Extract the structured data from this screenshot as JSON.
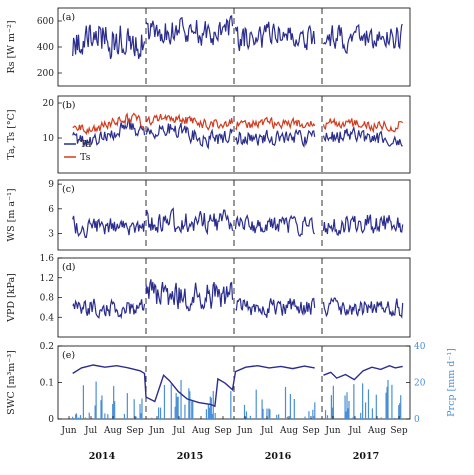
{
  "chart_data": [
    {
      "type": "line",
      "panel": "(a)",
      "ylabel": "Rs [W m⁻²]",
      "ylim": [
        100,
        700
      ],
      "yticks": [
        200,
        400,
        600
      ],
      "series": [
        {
          "color": "#2b2d8e",
          "segments": [
            {
              "start": 0.5,
              "end": 2.95,
              "base": 460,
              "amp": 200,
              "seed": 3
            },
            {
              "start": 3.0,
              "end": 5.95,
              "base": 520,
              "amp": 150,
              "seed": 7
            },
            {
              "start": 6.05,
              "end": 8.75,
              "base": 470,
              "amp": 150,
              "seed": 11
            },
            {
              "start": 9.05,
              "end": 11.75,
              "base": 470,
              "amp": 140,
              "seed": 17
            }
          ]
        }
      ]
    },
    {
      "type": "line",
      "panel": "(b)",
      "ylabel": "Ta, Ts [°C]",
      "ylim": [
        0,
        22
      ],
      "yticks": [
        10,
        20
      ],
      "legend": [
        "Ta",
        "Ts"
      ],
      "series": [
        {
          "name": "Ta",
          "color": "#2b2d8e",
          "segments": [
            {
              "start": 0.5,
              "end": 2.95,
              "base": 11,
              "amp": 3,
              "trend": -0.8,
              "seed": 5
            },
            {
              "start": 3.0,
              "end": 5.95,
              "base": 11,
              "amp": 3,
              "trend": 0.5,
              "seed": 9
            },
            {
              "start": 6.05,
              "end": 8.75,
              "base": 10,
              "amp": 3,
              "trend": 0.0,
              "seed": 13
            },
            {
              "start": 9.05,
              "end": 11.75,
              "base": 10,
              "amp": 3,
              "trend": 0.2,
              "seed": 19
            }
          ]
        },
        {
          "name": "Ts",
          "color": "#d33b1f",
          "segments": [
            {
              "start": 0.5,
              "end": 2.95,
              "base": 14,
              "amp": 2,
              "trend": -0.8,
              "seed": 21
            },
            {
              "start": 3.0,
              "end": 5.95,
              "base": 15,
              "amp": 2,
              "trend": 0.5,
              "seed": 23
            },
            {
              "start": 6.05,
              "end": 8.75,
              "base": 14,
              "amp": 2,
              "trend": 0.0,
              "seed": 29
            },
            {
              "start": 9.05,
              "end": 11.75,
              "base": 14,
              "amp": 2,
              "trend": 0.3,
              "seed": 31
            }
          ]
        }
      ]
    },
    {
      "type": "line",
      "panel": "(c)",
      "ylabel": "WS [m a⁻¹]",
      "ylim": [
        1,
        9.5
      ],
      "yticks": [
        3,
        6,
        9
      ],
      "series": [
        {
          "color": "#2b2d8e",
          "segments": [
            {
              "start": 0.5,
              "end": 2.95,
              "base": 3.8,
              "amp": 1.6,
              "seed": 37
            },
            {
              "start": 3.0,
              "end": 5.95,
              "base": 4.4,
              "amp": 1.8,
              "seed": 41
            },
            {
              "start": 6.05,
              "end": 8.75,
              "base": 4.0,
              "amp": 1.5,
              "seed": 43
            },
            {
              "start": 9.05,
              "end": 11.75,
              "base": 4.2,
              "amp": 1.8,
              "seed": 47
            }
          ]
        }
      ]
    },
    {
      "type": "line",
      "panel": "(d)",
      "ylabel": "VPD [kPa]",
      "ylim": [
        0,
        1.6
      ],
      "yticks": [
        0.4,
        0.8,
        1.2,
        1.6
      ],
      "series": [
        {
          "color": "#2b2d8e",
          "segments": [
            {
              "start": 0.5,
              "end": 2.95,
              "base": 0.6,
              "amp": 0.25,
              "seed": 53
            },
            {
              "start": 3.0,
              "end": 5.95,
              "base": 0.85,
              "amp": 0.4,
              "seed": 59
            },
            {
              "start": 6.05,
              "end": 8.75,
              "base": 0.6,
              "amp": 0.25,
              "seed": 61
            },
            {
              "start": 9.05,
              "end": 11.75,
              "base": 0.6,
              "amp": 0.25,
              "seed": 67
            }
          ]
        }
      ]
    },
    {
      "type": "line",
      "panel": "(e)",
      "ylabel": "SWC [m³m⁻³]",
      "ylabel_right": "Prcp [mm d⁻¹]",
      "ylim": [
        0,
        0.2
      ],
      "yticks": [
        0,
        0.1,
        0.2
      ],
      "ylim_right": [
        0,
        40
      ],
      "yticks_right": [
        0,
        20,
        40
      ],
      "series": [
        {
          "name": "SWC",
          "color": "#2b2d8e",
          "points": [
            [
              0.5,
              0.125
            ],
            [
              0.8,
              0.14
            ],
            [
              1.2,
              0.148
            ],
            [
              1.6,
              0.142
            ],
            [
              2.0,
              0.146
            ],
            [
              2.4,
              0.14
            ],
            [
              2.8,
              0.132
            ],
            [
              2.95,
              0.125
            ],
            [
              3.0,
              0.06
            ],
            [
              3.3,
              0.048
            ],
            [
              3.6,
              0.12
            ],
            [
              3.8,
              0.105
            ],
            [
              4.1,
              0.075
            ],
            [
              4.4,
              0.055
            ],
            [
              4.8,
              0.045
            ],
            [
              5.2,
              0.04
            ],
            [
              5.35,
              0.035
            ],
            [
              5.45,
              0.11
            ],
            [
              5.7,
              0.098
            ],
            [
              5.95,
              0.08
            ],
            [
              6.05,
              0.13
            ],
            [
              6.4,
              0.142
            ],
            [
              6.8,
              0.146
            ],
            [
              7.2,
              0.14
            ],
            [
              7.6,
              0.144
            ],
            [
              8.0,
              0.138
            ],
            [
              8.4,
              0.145
            ],
            [
              8.75,
              0.14
            ],
            [
              9.05,
              0.12
            ],
            [
              9.3,
              0.128
            ],
            [
              9.5,
              0.112
            ],
            [
              9.8,
              0.122
            ],
            [
              10.1,
              0.108
            ],
            [
              10.4,
              0.132
            ],
            [
              10.7,
              0.142
            ],
            [
              11.0,
              0.136
            ],
            [
              11.3,
              0.146
            ],
            [
              11.5,
              0.14
            ],
            [
              11.75,
              0.144
            ]
          ]
        },
        {
          "name": "Prcp",
          "color": "#4a8fd6",
          "type": "bar",
          "axis": "right",
          "range": [
            0.5,
            11.75
          ],
          "max": 22,
          "seed": 71
        }
      ]
    }
  ],
  "x_axis": {
    "month_ticks": [
      "Jun",
      "Jul",
      "Aug",
      "Sep",
      "Jun",
      "Jul",
      "Aug",
      "Sep",
      "Jun",
      "Jul",
      "Aug",
      "Sep",
      "Jun",
      "Jul",
      "Aug",
      "Sep"
    ],
    "years": [
      "2014",
      "2015",
      "2016",
      "2017"
    ],
    "year_breaks": [
      3,
      6,
      9
    ]
  },
  "colors": {
    "ta": "#2b2d8e",
    "ts": "#d33b1f",
    "prcp": "#4a8fd6"
  }
}
